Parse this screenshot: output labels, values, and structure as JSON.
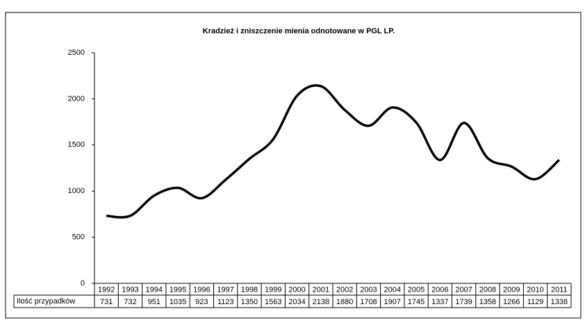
{
  "chart_data": {
    "type": "line",
    "title": "Kradzież i zniszczenie mienia odnotowane w PGL LP.",
    "categories": [
      "1992",
      "1993",
      "1994",
      "1995",
      "1996",
      "1997",
      "1998",
      "1999",
      "2000",
      "2001",
      "2002",
      "2003",
      "2004",
      "2005",
      "2006",
      "2007",
      "2008",
      "2009",
      "2010",
      "2011"
    ],
    "series": [
      {
        "name": "Ilość przypadków",
        "color": "#000000",
        "values": [
          731,
          732,
          951,
          1035,
          923,
          1123,
          1350,
          1563,
          2034,
          2138,
          1880,
          1708,
          1907,
          1745,
          1337,
          1739,
          1358,
          1266,
          1129,
          1338
        ]
      }
    ],
    "ylim": [
      0,
      2500
    ],
    "yticks": [
      0,
      500,
      1000,
      1500,
      2000,
      2500
    ],
    "grid": false,
    "smooth": true
  }
}
